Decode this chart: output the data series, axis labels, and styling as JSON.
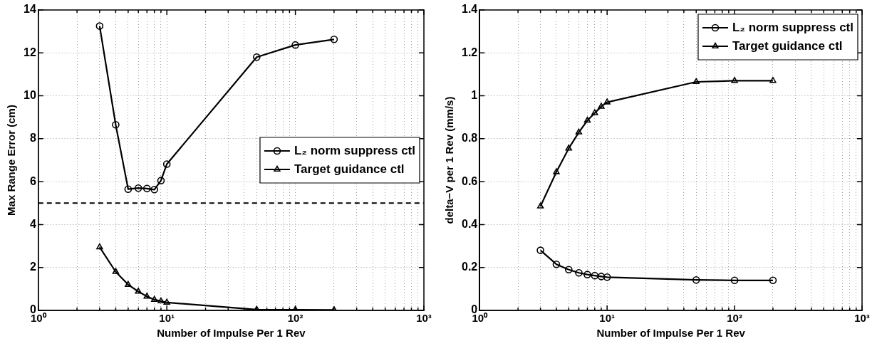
{
  "chart_data": [
    {
      "type": "line",
      "xlabel": "Number of Impulse Per 1 Rev",
      "ylabel": "Max Range Error (cm)",
      "log": "x",
      "grid": true,
      "legend": "center right",
      "line_style": "solid",
      "xlim": [
        1,
        1000
      ],
      "xticks": [
        {
          "value": 1,
          "label": "10⁰"
        },
        {
          "value": 2,
          "label": null
        },
        {
          "value": 3,
          "label": null
        },
        {
          "value": 4,
          "label": null
        },
        {
          "value": 5,
          "label": null
        },
        {
          "value": 6,
          "label": null
        },
        {
          "value": 7,
          "label": null
        },
        {
          "value": 8,
          "label": null
        },
        {
          "value": 9,
          "label": null
        },
        {
          "value": 10,
          "label": "10¹"
        },
        {
          "value": 20,
          "label": null
        },
        {
          "value": 30,
          "label": null
        },
        {
          "value": 40,
          "label": null
        },
        {
          "value": 50,
          "label": null
        },
        {
          "value": 60,
          "label": null
        },
        {
          "value": 70,
          "label": null
        },
        {
          "value": 80,
          "label": null
        },
        {
          "value": 90,
          "label": null
        },
        {
          "value": 100,
          "label": "10²"
        },
        {
          "value": 200,
          "label": null
        },
        {
          "value": 300,
          "label": null
        },
        {
          "value": 400,
          "label": null
        },
        {
          "value": 500,
          "label": null
        },
        {
          "value": 600,
          "label": null
        },
        {
          "value": 700,
          "label": null
        },
        {
          "value": 800,
          "label": null
        },
        {
          "value": 900,
          "label": null
        },
        {
          "value": 1000,
          "label": "10³"
        }
      ],
      "ylim": [
        0,
        14
      ],
      "yticks": [
        0,
        2,
        4,
        6,
        8,
        10,
        12,
        14
      ],
      "x": [
        3,
        4,
        5,
        6,
        7,
        8,
        9,
        10,
        50,
        100,
        200
      ],
      "series": [
        {
          "name": "L₂ norm suppress ctl",
          "color": "#000000",
          "marker": "circle",
          "values": [
            13.25,
            8.65,
            5.65,
            5.7,
            5.68,
            5.63,
            6.05,
            6.82,
            11.8,
            12.37,
            12.63
          ]
        },
        {
          "name": "Target guidance ctl",
          "color": "#000000",
          "marker": "triangle",
          "values": [
            2.95,
            1.8,
            1.2,
            0.88,
            0.65,
            0.5,
            0.43,
            0.37,
            0.04,
            0.03,
            0.02
          ]
        }
      ],
      "ref_lines": [
        {
          "axis": "y",
          "value": 5,
          "color": "#000000",
          "line_style": "dashed"
        }
      ]
    },
    {
      "type": "line",
      "xlabel": "Number of Impulse Per 1 Rev",
      "ylabel": "delta−V per 1 Rev (mm/s)",
      "log": "x",
      "grid": true,
      "legend": "top right",
      "line_style": "solid",
      "xlim": [
        1,
        1000
      ],
      "xticks": [
        {
          "value": 1,
          "label": "10⁰"
        },
        {
          "value": 2,
          "label": null
        },
        {
          "value": 3,
          "label": null
        },
        {
          "value": 4,
          "label": null
        },
        {
          "value": 5,
          "label": null
        },
        {
          "value": 6,
          "label": null
        },
        {
          "value": 7,
          "label": null
        },
        {
          "value": 8,
          "label": null
        },
        {
          "value": 9,
          "label": null
        },
        {
          "value": 10,
          "label": "10¹"
        },
        {
          "value": 20,
          "label": null
        },
        {
          "value": 30,
          "label": null
        },
        {
          "value": 40,
          "label": null
        },
        {
          "value": 50,
          "label": null
        },
        {
          "value": 60,
          "label": null
        },
        {
          "value": 70,
          "label": null
        },
        {
          "value": 80,
          "label": null
        },
        {
          "value": 90,
          "label": null
        },
        {
          "value": 100,
          "label": "10²"
        },
        {
          "value": 200,
          "label": null
        },
        {
          "value": 300,
          "label": null
        },
        {
          "value": 400,
          "label": null
        },
        {
          "value": 500,
          "label": null
        },
        {
          "value": 600,
          "label": null
        },
        {
          "value": 700,
          "label": null
        },
        {
          "value": 800,
          "label": null
        },
        {
          "value": 900,
          "label": null
        },
        {
          "value": 1000,
          "label": "10³"
        }
      ],
      "ylim": [
        0,
        1.4
      ],
      "yticks": [
        0,
        0.2,
        0.4,
        0.6,
        0.8,
        1,
        1.2,
        1.4
      ],
      "x": [
        3,
        4,
        5,
        6,
        7,
        8,
        9,
        10,
        50,
        100,
        200
      ],
      "series": [
        {
          "name": "L₂ norm suppress ctl",
          "color": "#000000",
          "marker": "circle",
          "values": [
            0.28,
            0.215,
            0.19,
            0.175,
            0.167,
            0.162,
            0.158,
            0.155,
            0.142,
            0.14,
            0.14
          ]
        },
        {
          "name": "Target guidance ctl",
          "color": "#000000",
          "marker": "triangle",
          "values": [
            0.485,
            0.645,
            0.755,
            0.83,
            0.885,
            0.92,
            0.95,
            0.97,
            1.065,
            1.07,
            1.07
          ]
        }
      ]
    }
  ]
}
